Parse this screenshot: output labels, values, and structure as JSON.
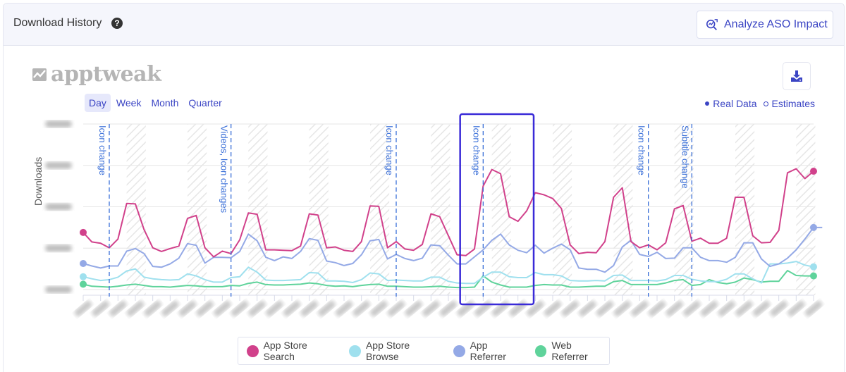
{
  "header": {
    "title": "Download History",
    "help_icon": "question-circle-icon",
    "analyze_button": "Analyze ASO Impact",
    "analyze_icon": "magnifier-chart-icon"
  },
  "toolbar": {
    "logo_text": "apptweak",
    "periods": [
      "Day",
      "Week",
      "Month",
      "Quarter"
    ],
    "active_period": "Day",
    "export_icon": "download-icon",
    "real_data_label": "Real Data",
    "estimates_label": "Estimates"
  },
  "colors": {
    "search": "#d1418b",
    "browse": "#9fe0ee",
    "referrer": "#94a9e6",
    "web": "#5fd39b",
    "accent": "#3b45c4",
    "annotation": "#3a6fd8",
    "highlight": "#3a2bd8"
  },
  "chart_data": {
    "type": "line",
    "title": "Download History",
    "xlabel": "",
    "ylabel": "Downloads",
    "ylim": [
      0,
      4000
    ],
    "yticks_note": "y tick labels blurred in screenshot",
    "grid": true,
    "legend_position": "bottom",
    "x_note": "daily points; x tick labels blurred",
    "annotations": [
      {
        "index": 3,
        "label": "Icon change"
      },
      {
        "index": 17,
        "label": "Videos, Icon changes"
      },
      {
        "index": 36,
        "label": "Icon change"
      },
      {
        "index": 46,
        "label": "Icon change"
      },
      {
        "index": 65,
        "label": "Icon change"
      },
      {
        "index": 70,
        "label": "Subtitle change"
      }
    ],
    "highlight_range": [
      44,
      51
    ],
    "series": [
      {
        "name": "App Store Search",
        "color": "#d1418b",
        "values": [
          1380,
          1150,
          1120,
          1010,
          1220,
          2080,
          2070,
          1450,
          1010,
          920,
          990,
          1050,
          1720,
          1790,
          1010,
          790,
          930,
          870,
          1200,
          1850,
          1820,
          960,
          960,
          950,
          940,
          1050,
          1830,
          1800,
          1010,
          1030,
          950,
          920,
          1160,
          2020,
          2010,
          1010,
          1160,
          980,
          950,
          1090,
          1830,
          1760,
          1300,
          840,
          820,
          980,
          2500,
          2900,
          2800,
          1760,
          1650,
          1900,
          2340,
          2290,
          2200,
          1960,
          1080,
          870,
          900,
          890,
          1160,
          2230,
          2460,
          1160,
          1010,
          1080,
          960,
          1130,
          1950,
          2030,
          1170,
          1240,
          1120,
          1120,
          1240,
          2230,
          2230,
          1300,
          1130,
          1140,
          1430,
          2820,
          2920,
          2680,
          2860
        ]
      },
      {
        "name": "App Store Browse",
        "color": "#9fe0ee",
        "values": [
          310,
          260,
          220,
          240,
          300,
          450,
          500,
          300,
          260,
          240,
          230,
          240,
          380,
          330,
          240,
          180,
          180,
          290,
          310,
          540,
          420,
          230,
          220,
          220,
          230,
          240,
          410,
          400,
          210,
          210,
          200,
          170,
          240,
          400,
          380,
          220,
          230,
          220,
          210,
          210,
          300,
          300,
          200,
          160,
          150,
          150,
          300,
          420,
          420,
          310,
          290,
          290,
          410,
          360,
          360,
          330,
          220,
          210,
          210,
          220,
          210,
          340,
          350,
          220,
          220,
          220,
          210,
          240,
          340,
          340,
          250,
          210,
          190,
          190,
          250,
          380,
          380,
          260,
          160,
          620,
          620,
          640,
          680,
          590,
          550
        ]
      },
      {
        "name": "App Referrer",
        "color": "#94a9e6",
        "values": [
          630,
          570,
          520,
          570,
          570,
          930,
          990,
          870,
          560,
          540,
          620,
          760,
          1110,
          1070,
          640,
          780,
          780,
          770,
          920,
          1340,
          1180,
          780,
          700,
          790,
          750,
          920,
          1230,
          1190,
          690,
          650,
          580,
          630,
          840,
          1180,
          1210,
          740,
          850,
          750,
          700,
          760,
          1080,
          1060,
          830,
          620,
          620,
          790,
          960,
          1190,
          1340,
          1080,
          950,
          890,
          1070,
          880,
          1000,
          1100,
          960,
          520,
          490,
          490,
          420,
          580,
          1030,
          1190,
          850,
          800,
          900,
          750,
          760,
          1010,
          1010,
          780,
          700,
          700,
          660,
          780,
          1130,
          1130,
          740,
          560,
          620,
          760,
          960,
          1220,
          1500,
          1500
        ]
      },
      {
        "name": "Web Referrer",
        "color": "#5fd39b",
        "values": [
          130,
          80,
          70,
          60,
          80,
          110,
          130,
          100,
          70,
          70,
          60,
          80,
          100,
          90,
          70,
          70,
          70,
          100,
          90,
          150,
          180,
          120,
          110,
          110,
          120,
          130,
          160,
          140,
          100,
          80,
          90,
          70,
          100,
          120,
          130,
          80,
          80,
          70,
          60,
          60,
          70,
          80,
          60,
          50,
          50,
          60,
          330,
          180,
          110,
          60,
          60,
          60,
          100,
          120,
          110,
          110,
          60,
          60,
          70,
          80,
          80,
          190,
          220,
          120,
          120,
          120,
          120,
          160,
          220,
          240,
          100,
          120,
          240,
          170,
          140,
          180,
          280,
          240,
          180,
          200,
          200,
          460,
          340,
          330,
          330
        ]
      }
    ]
  },
  "legend": {
    "items": [
      {
        "label": "App Store Search",
        "color": "#d1418b"
      },
      {
        "label": "App Store Browse",
        "color": "#9fe0ee"
      },
      {
        "label": "App Referrer",
        "color": "#94a9e6"
      },
      {
        "label": "Web Referrer",
        "color": "#5fd39b"
      }
    ]
  }
}
